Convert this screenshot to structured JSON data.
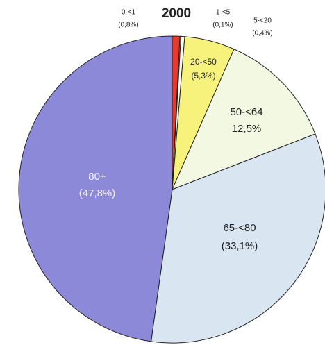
{
  "chart_data": {
    "type": "pie",
    "title": "2000",
    "categories": [
      "0-<1",
      "1-<5",
      "5-<20",
      "20-<50",
      "50-<64",
      "65-<80",
      "80+"
    ],
    "values": [
      0.8,
      0.1,
      0.4,
      5.3,
      12.5,
      33.1,
      47.8
    ],
    "value_labels": [
      "(0,8%)",
      "(0,1%)",
      "(0,4%)",
      "(5,3%)",
      "12,5%",
      "(33,1%)",
      "(47,8%)"
    ],
    "colors": [
      "#e53a2c",
      "#f6d77a",
      "#fbfbe8",
      "#f7f27c",
      "#f3f8e2",
      "#d9e6f2",
      "#8d89d9"
    ]
  }
}
